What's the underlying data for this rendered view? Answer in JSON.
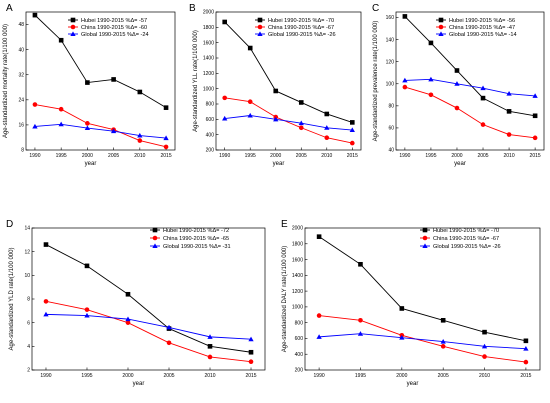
{
  "series_styles": [
    {
      "name": "Hubei",
      "color": "#000000",
      "marker": "square"
    },
    {
      "name": "China",
      "color": "#ff0000",
      "marker": "circle"
    },
    {
      "name": "Global",
      "color": "#0000ff",
      "marker": "triangle"
    }
  ],
  "chart_data": [
    {
      "panel": "A",
      "type": "line",
      "title": "",
      "xlabel": "year",
      "ylabel": "Age-standardized mortality rate(1/100 000)",
      "x": [
        1990,
        1995,
        2000,
        2005,
        2010,
        2015
      ],
      "xticks": [
        "1990",
        "1995",
        "2000",
        "2005",
        "2010",
        "2015"
      ],
      "ylim": [
        8,
        52
      ],
      "yticks": [
        8,
        16,
        24,
        32,
        40,
        48
      ],
      "legend_position": "top-right",
      "series": [
        {
          "name": "Hubei",
          "legend": "Hubei  1990-2015 %Δ= -57",
          "values": [
            51,
            43,
            29.5,
            30.5,
            26.5,
            21.5
          ]
        },
        {
          "name": "China",
          "legend": "China  1990-2015 %Δ= -60",
          "values": [
            22.5,
            21,
            16.5,
            14.5,
            11,
            9
          ]
        },
        {
          "name": "Global",
          "legend": "Global  1990-2015 %Δ= -24",
          "values": [
            15.5,
            16.2,
            15,
            14,
            12.6,
            11.8
          ]
        }
      ]
    },
    {
      "panel": "B",
      "type": "line",
      "title": "",
      "xlabel": "year",
      "ylabel": "Age-standardized YLL rate(1/100 000)",
      "x": [
        1990,
        1995,
        2000,
        2005,
        2010,
        2015
      ],
      "xticks": [
        "1990",
        "1995",
        "2000",
        "2005",
        "2010",
        "2015"
      ],
      "ylim": [
        200,
        2000
      ],
      "yticks": [
        200,
        400,
        600,
        800,
        1000,
        1200,
        1400,
        1600,
        1800,
        2000
      ],
      "legend_position": "top-right",
      "series": [
        {
          "name": "Hubei",
          "legend": "Hubei  1990-2015 %Δ= -70",
          "values": [
            1870,
            1530,
            970,
            820,
            670,
            560
          ]
        },
        {
          "name": "China",
          "legend": "China  1990-2015 %Δ= -67",
          "values": [
            880,
            830,
            630,
            490,
            360,
            290
          ]
        },
        {
          "name": "Global",
          "legend": "Global  1990-2015 %Δ= -26",
          "values": [
            610,
            650,
            600,
            550,
            490,
            460
          ]
        }
      ]
    },
    {
      "panel": "C",
      "type": "line",
      "title": "",
      "xlabel": "year",
      "ylabel": "Age-standardized prevalence rate(1/100 000)",
      "x": [
        1990,
        1995,
        2000,
        2005,
        2010,
        2015
      ],
      "xticks": [
        "1990",
        "1995",
        "2000",
        "2005",
        "2010",
        "2015"
      ],
      "ylim": [
        40,
        165
      ],
      "yticks": [
        40,
        60,
        80,
        100,
        120,
        140,
        160
      ],
      "legend_position": "top-right",
      "series": [
        {
          "name": "Hubei",
          "legend": "Hubei  1990-2015 %Δ= -56",
          "values": [
            161,
            137,
            112,
            87,
            75,
            71
          ]
        },
        {
          "name": "China",
          "legend": "China  1990-2015 %Δ= -47",
          "values": [
            97,
            90,
            78,
            63,
            54,
            51
          ]
        },
        {
          "name": "Global",
          "legend": "Global  1990-2015 %Δ= -14",
          "values": [
            103,
            104,
            100,
            96,
            91,
            89
          ]
        }
      ]
    },
    {
      "panel": "D",
      "type": "line",
      "title": "",
      "xlabel": "year",
      "ylabel": "Age-standardized YLD rate(1/100 000)",
      "x": [
        1990,
        1995,
        2000,
        2005,
        2010,
        2015
      ],
      "xticks": [
        "1990",
        "1995",
        "2000",
        "2005",
        "2010",
        "2015"
      ],
      "ylim": [
        2,
        14
      ],
      "yticks": [
        2,
        4,
        6,
        8,
        10,
        12,
        14
      ],
      "legend_position": "top-right",
      "series": [
        {
          "name": "Hubei",
          "legend": "Hubei  1990-2015 %Δ= -72",
          "values": [
            12.6,
            10.8,
            8.4,
            5.5,
            4.0,
            3.5
          ]
        },
        {
          "name": "China",
          "legend": "China  1990-2015 %Δ= -65",
          "values": [
            7.8,
            7.1,
            6.0,
            4.3,
            3.1,
            2.7
          ]
        },
        {
          "name": "Global",
          "legend": "Global  1990-2015 %Δ= -31",
          "values": [
            6.7,
            6.6,
            6.3,
            5.6,
            4.8,
            4.6
          ]
        }
      ]
    },
    {
      "panel": "E",
      "type": "line",
      "title": "",
      "xlabel": "year",
      "ylabel": "Age-standardized DALY rate(1/100 000)",
      "x": [
        1990,
        1995,
        2000,
        2005,
        2010,
        2015
      ],
      "xticks": [
        "1990",
        "1995",
        "2000",
        "2005",
        "2010",
        "2015"
      ],
      "ylim": [
        200,
        2000
      ],
      "yticks": [
        200,
        400,
        600,
        800,
        1000,
        1200,
        1400,
        1600,
        1800,
        2000
      ],
      "legend_position": "top-right",
      "series": [
        {
          "name": "Hubei",
          "legend": "Hubei  1990-2015 %Δ= -70",
          "values": [
            1890,
            1540,
            980,
            830,
            680,
            570
          ]
        },
        {
          "name": "China",
          "legend": "China  1990-2015 %Δ= -67",
          "values": [
            890,
            830,
            640,
            500,
            370,
            300
          ]
        },
        {
          "name": "Global",
          "legend": "Global  1990-2015 %Δ= -26",
          "values": [
            620,
            660,
            610,
            560,
            500,
            470
          ]
        }
      ]
    }
  ]
}
